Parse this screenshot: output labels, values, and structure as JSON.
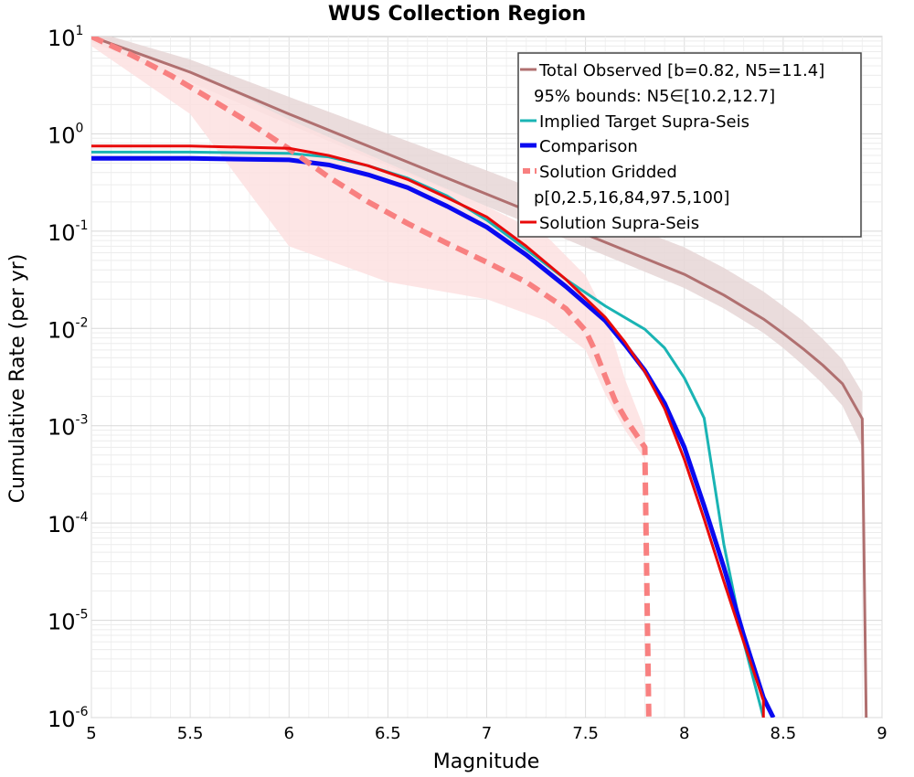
{
  "chart_data": {
    "type": "line",
    "title": "WUS Collection Region",
    "xlabel": "Magnitude",
    "ylabel": "Cumulative Rate (per yr)",
    "xlim": [
      5,
      9
    ],
    "ylim": [
      1e-06,
      10
    ],
    "yscale": "log",
    "grid": true,
    "legend_position": "top-right",
    "x_ticks": [
      "5",
      "5.5",
      "6",
      "6.5",
      "7",
      "7.5",
      "8",
      "8.5",
      "9"
    ],
    "y_ticks": [
      {
        "base": "10",
        "exp": "-6"
      },
      {
        "base": "10",
        "exp": "-5"
      },
      {
        "base": "10",
        "exp": "-4"
      },
      {
        "base": "10",
        "exp": "-3"
      },
      {
        "base": "10",
        "exp": "-2"
      },
      {
        "base": "10",
        "exp": "-1"
      },
      {
        "base": "10",
        "exp": "0"
      },
      {
        "base": "10",
        "exp": "1"
      }
    ],
    "series": [
      {
        "name": "Total Observed [b=0.82, N5=11.4]",
        "color": "#b07070",
        "style": "solid",
        "x": [
          5.0,
          5.5,
          6.0,
          6.5,
          7.0,
          7.5,
          8.0,
          8.2,
          8.4,
          8.5,
          8.6,
          8.7,
          8.8,
          8.9,
          8.92
        ],
        "y": [
          10.0,
          4.3,
          1.6,
          0.62,
          0.24,
          0.093,
          0.036,
          0.022,
          0.0125,
          0.0089,
          0.0062,
          0.0042,
          0.0027,
          0.00118,
          1e-06
        ]
      },
      {
        "name": "95% bounds: N5∈[10.2,12.7]",
        "color": "#e6d6d6",
        "style": "band",
        "x": [
          5.0,
          5.5,
          6.0,
          6.5,
          7.0,
          7.5,
          8.0,
          8.2,
          8.4,
          8.5,
          8.6,
          8.7,
          8.8,
          8.9
        ],
        "y_low": [
          8.8,
          3.4,
          1.25,
          0.47,
          0.18,
          0.068,
          0.026,
          0.016,
          0.009,
          0.0063,
          0.0042,
          0.0027,
          0.0016,
          0.0006
        ],
        "y_high": [
          11.5,
          5.8,
          2.4,
          1.0,
          0.42,
          0.17,
          0.068,
          0.042,
          0.024,
          0.017,
          0.012,
          0.0078,
          0.0048,
          0.0022
        ]
      },
      {
        "name": "Implied Target Supra-Seis",
        "color": "#1ab4b4",
        "style": "solid",
        "x": [
          5.0,
          5.5,
          6.0,
          6.2,
          6.4,
          6.6,
          6.8,
          7.0,
          7.2,
          7.4,
          7.6,
          7.8,
          7.9,
          8.0,
          8.1,
          8.2,
          8.3,
          8.4
        ],
        "y": [
          0.65,
          0.65,
          0.63,
          0.58,
          0.47,
          0.35,
          0.23,
          0.13,
          0.065,
          0.032,
          0.017,
          0.0098,
          0.0063,
          0.0031,
          0.0012,
          6e-05,
          6e-06,
          1e-06
        ]
      },
      {
        "name": "Comparison",
        "color": "#0a0af0",
        "style": "solid",
        "x": [
          5.0,
          5.5,
          6.0,
          6.2,
          6.4,
          6.6,
          6.8,
          7.0,
          7.2,
          7.4,
          7.6,
          7.7,
          7.8,
          7.9,
          8.0,
          8.1,
          8.2,
          8.3,
          8.4,
          8.45
        ],
        "y": [
          0.56,
          0.56,
          0.54,
          0.48,
          0.38,
          0.28,
          0.18,
          0.11,
          0.057,
          0.027,
          0.012,
          0.0068,
          0.0037,
          0.0017,
          0.0006,
          0.00015,
          3.5e-05,
          7e-06,
          1.6e-06,
          1e-06
        ]
      },
      {
        "name": "Solution Gridded",
        "color": "#f88080",
        "style": "dashed",
        "x": [
          5.0,
          5.2,
          5.4,
          5.6,
          5.8,
          6.0,
          6.2,
          6.4,
          6.6,
          6.8,
          7.0,
          7.2,
          7.4,
          7.5,
          7.55,
          7.6,
          7.65,
          7.7,
          7.8,
          7.82
        ],
        "y": [
          10.0,
          6.5,
          4.0,
          2.3,
          1.3,
          0.7,
          0.36,
          0.2,
          0.12,
          0.075,
          0.048,
          0.03,
          0.016,
          0.0095,
          0.0058,
          0.0032,
          0.0018,
          0.0012,
          0.0006,
          1e-06
        ]
      },
      {
        "name": "p[0,2.5,16,84,97.5,100]",
        "color": "#fde0e0",
        "style": "band",
        "x": [
          5.0,
          5.5,
          6.0,
          6.5,
          7.0,
          7.3,
          7.5,
          7.6,
          7.7,
          7.8
        ],
        "y_low": [
          8.0,
          1.6,
          0.07,
          0.03,
          0.02,
          0.012,
          0.006,
          0.0021,
          0.0009,
          0.00045
        ],
        "y_high": [
          10.5,
          4.4,
          1.4,
          0.5,
          0.18,
          0.09,
          0.035,
          0.014,
          0.003,
          0.0009
        ]
      },
      {
        "name": "Solution Supra-Seis",
        "color": "#e80a0a",
        "style": "solid",
        "x": [
          5.0,
          5.5,
          6.0,
          6.2,
          6.4,
          6.6,
          6.8,
          7.0,
          7.2,
          7.4,
          7.6,
          7.7,
          7.8,
          7.9,
          8.0,
          8.1,
          8.2,
          8.3,
          8.4,
          8.4
        ],
        "y": [
          0.75,
          0.75,
          0.71,
          0.6,
          0.47,
          0.34,
          0.22,
          0.14,
          0.07,
          0.032,
          0.013,
          0.0072,
          0.0036,
          0.0015,
          0.00045,
          0.00011,
          2.5e-05,
          6e-06,
          1.5e-06,
          1e-06
        ]
      }
    ]
  }
}
